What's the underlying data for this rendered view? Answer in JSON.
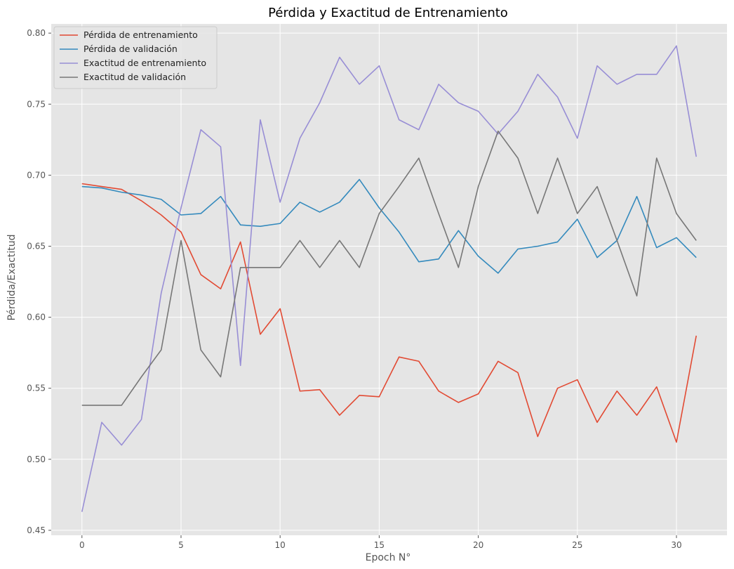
{
  "chart_data": {
    "type": "line",
    "title": "Pérdida y Exactitud de Entrenamiento",
    "xlabel": "Epoch N°",
    "ylabel": "Pérdida/Exactitud",
    "xlim": [
      -1.55,
      32.55
    ],
    "ylim": [
      0.4465,
      0.8065
    ],
    "xticks": [
      0,
      5,
      10,
      15,
      20,
      25,
      30
    ],
    "yticks": [
      0.45,
      0.5,
      0.55,
      0.6,
      0.65,
      0.7,
      0.75,
      0.8
    ],
    "grid": true,
    "legend_position": "upper-left",
    "x": [
      0,
      1,
      2,
      3,
      4,
      5,
      6,
      7,
      8,
      9,
      10,
      11,
      12,
      13,
      14,
      15,
      16,
      17,
      18,
      19,
      20,
      21,
      22,
      23,
      24,
      25,
      26,
      27,
      28,
      29,
      30,
      31
    ],
    "series": [
      {
        "name": "Pérdida de entrenamiento",
        "color": "#E24A33",
        "values": [
          0.694,
          0.692,
          0.69,
          0.682,
          0.672,
          0.66,
          0.63,
          0.62,
          0.653,
          0.588,
          0.606,
          0.548,
          0.549,
          0.531,
          0.545,
          0.544,
          0.572,
          0.569,
          0.548,
          0.54,
          0.546,
          0.569,
          0.561,
          0.516,
          0.55,
          0.556,
          0.526,
          0.548,
          0.531,
          0.551,
          0.512,
          0.587
        ]
      },
      {
        "name": "Pérdida de validación",
        "color": "#348ABD",
        "values": [
          0.692,
          0.691,
          0.688,
          0.686,
          0.683,
          0.672,
          0.673,
          0.685,
          0.665,
          0.664,
          0.666,
          0.681,
          0.674,
          0.681,
          0.697,
          0.677,
          0.66,
          0.639,
          0.641,
          0.661,
          0.643,
          0.631,
          0.648,
          0.65,
          0.653,
          0.669,
          0.642,
          0.654,
          0.685,
          0.649,
          0.656,
          0.642
        ]
      },
      {
        "name": "Exactitud de entrenamiento",
        "color": "#988ED5",
        "values": [
          0.463,
          0.526,
          0.51,
          0.528,
          0.617,
          0.677,
          0.732,
          0.72,
          0.566,
          0.739,
          0.681,
          0.726,
          0.751,
          0.783,
          0.764,
          0.777,
          0.739,
          0.732,
          0.764,
          0.751,
          0.745,
          0.729,
          0.745,
          0.771,
          0.755,
          0.726,
          0.777,
          0.764,
          0.771,
          0.771,
          0.791,
          0.713
        ]
      },
      {
        "name": "Exactitud de validación",
        "color": "#777777",
        "values": [
          0.538,
          0.538,
          0.538,
          0.558,
          0.577,
          0.654,
          0.577,
          0.558,
          0.635,
          0.635,
          0.635,
          0.654,
          0.635,
          0.654,
          0.635,
          0.673,
          0.692,
          0.712,
          0.673,
          0.635,
          0.692,
          0.731,
          0.712,
          0.673,
          0.712,
          0.673,
          0.692,
          0.654,
          0.615,
          0.712,
          0.673,
          0.654
        ]
      }
    ]
  }
}
